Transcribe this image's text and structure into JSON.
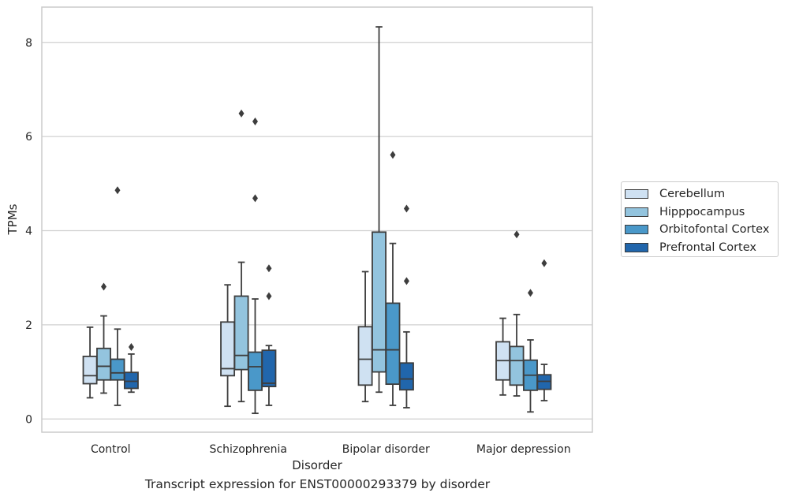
{
  "chart_data": {
    "type": "boxplot",
    "caption": "Transcript expression for ENST00000293379 by disorder",
    "xlabel": "Disorder",
    "ylabel": "TPMs",
    "ylim": [
      -0.28,
      8.75
    ],
    "yticks": [
      0,
      2,
      4,
      6,
      8
    ],
    "grid": true,
    "legend_position": "right",
    "categories": [
      "Control",
      "Schizophrenia",
      "Bipolar disorder",
      "Major depression"
    ],
    "series": [
      {
        "name": "Cerebellum",
        "color": "#cfe1f2",
        "boxes": [
          {
            "whislo": 0.45,
            "q1": 0.75,
            "med": 0.92,
            "q3": 1.33,
            "whishi": 1.95,
            "fliers": []
          },
          {
            "whislo": 0.27,
            "q1": 0.92,
            "med": 1.07,
            "q3": 2.06,
            "whishi": 2.85,
            "fliers": []
          },
          {
            "whislo": 0.37,
            "q1": 0.72,
            "med": 1.27,
            "q3": 1.96,
            "whishi": 3.13,
            "fliers": []
          },
          {
            "whislo": 0.51,
            "q1": 0.83,
            "med": 1.24,
            "q3": 1.64,
            "whishi": 2.14,
            "fliers": []
          }
        ]
      },
      {
        "name": "Hipppocampus",
        "color": "#93c4de",
        "boxes": [
          {
            "whislo": 0.55,
            "q1": 0.83,
            "med": 1.12,
            "q3": 1.5,
            "whishi": 2.19,
            "fliers": [
              2.81
            ]
          },
          {
            "whislo": 0.37,
            "q1": 1.05,
            "med": 1.35,
            "q3": 2.61,
            "whishi": 3.33,
            "fliers": [
              6.49
            ]
          },
          {
            "whislo": 0.57,
            "q1": 1.0,
            "med": 1.47,
            "q3": 3.97,
            "whishi": 8.33,
            "fliers": []
          },
          {
            "whislo": 0.49,
            "q1": 0.72,
            "med": 1.24,
            "q3": 1.54,
            "whishi": 2.22,
            "fliers": [
              3.92
            ]
          }
        ]
      },
      {
        "name": "Orbitofontal Cortex",
        "color": "#4a98c9",
        "boxes": [
          {
            "whislo": 0.29,
            "q1": 0.83,
            "med": 0.98,
            "q3": 1.27,
            "whishi": 1.91,
            "fliers": [
              4.86
            ]
          },
          {
            "whislo": 0.12,
            "q1": 0.61,
            "med": 1.11,
            "q3": 1.42,
            "whishi": 2.55,
            "fliers": [
              4.69,
              6.32
            ]
          },
          {
            "whislo": 0.29,
            "q1": 0.74,
            "med": 1.47,
            "q3": 2.46,
            "whishi": 3.73,
            "fliers": [
              5.61
            ]
          },
          {
            "whislo": 0.15,
            "q1": 0.61,
            "med": 0.93,
            "q3": 1.25,
            "whishi": 1.68,
            "fliers": [
              2.68
            ]
          }
        ]
      },
      {
        "name": "Prefrontal Cortex",
        "color": "#2166ac",
        "boxes": [
          {
            "whislo": 0.57,
            "q1": 0.65,
            "med": 0.8,
            "q3": 0.99,
            "whishi": 1.38,
            "fliers": [
              1.53
            ]
          },
          {
            "whislo": 0.29,
            "q1": 0.69,
            "med": 0.76,
            "q3": 1.46,
            "whishi": 1.56,
            "fliers": [
              2.61,
              3.2
            ]
          },
          {
            "whislo": 0.24,
            "q1": 0.62,
            "med": 0.85,
            "q3": 1.19,
            "whishi": 1.85,
            "fliers": [
              2.93,
              4.47
            ]
          },
          {
            "whislo": 0.39,
            "q1": 0.63,
            "med": 0.8,
            "q3": 0.94,
            "whishi": 1.16,
            "fliers": [
              3.31
            ]
          }
        ]
      }
    ]
  }
}
